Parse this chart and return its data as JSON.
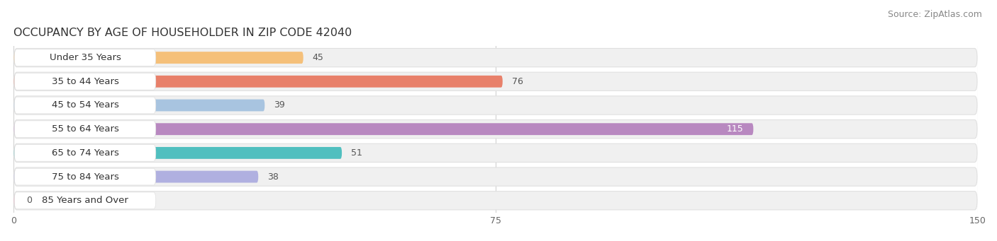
{
  "title": "OCCUPANCY BY AGE OF HOUSEHOLDER IN ZIP CODE 42040",
  "source": "Source: ZipAtlas.com",
  "categories": [
    "Under 35 Years",
    "35 to 44 Years",
    "45 to 54 Years",
    "55 to 64 Years",
    "65 to 74 Years",
    "75 to 84 Years",
    "85 Years and Over"
  ],
  "values": [
    45,
    76,
    39,
    115,
    51,
    38,
    0
  ],
  "bar_colors": [
    "#f5c07a",
    "#e8806a",
    "#a8c4e0",
    "#b888c0",
    "#50bfbf",
    "#b0b0e0",
    "#f0a0b8"
  ],
  "row_bg_color": "#f0f0f0",
  "row_border_color": "#e0e0e0",
  "xlim": [
    0,
    150
  ],
  "xticks": [
    0,
    75,
    150
  ],
  "title_fontsize": 11.5,
  "source_fontsize": 9,
  "label_fontsize": 9.5,
  "value_fontsize": 9,
  "background_color": "#ffffff",
  "text_color": "#333333",
  "source_color": "#888888",
  "value_color_inside": "#ffffff",
  "value_color_outside": "#555555",
  "grid_color": "#d0d0d0"
}
